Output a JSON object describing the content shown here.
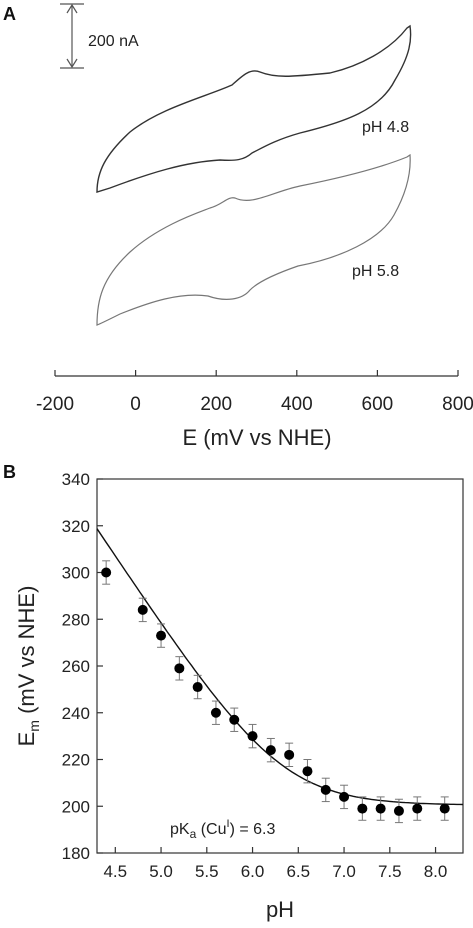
{
  "panels": {
    "a_label": "A",
    "b_label": "B"
  },
  "chart_data": [
    {
      "type": "line",
      "panel": "A",
      "xlabel": "E (mV vs NHE)",
      "ylabel": "",
      "xlim": [
        -200,
        800
      ],
      "xticks": [
        -200,
        0,
        200,
        400,
        600,
        800
      ],
      "scale_bar": {
        "label": "200 nA",
        "value_nA": 200
      },
      "series": [
        {
          "name": "pH 4.8",
          "E_range_mV": [
            -100,
            700
          ],
          "midpoint_mV": 250
        },
        {
          "name": "pH 5.8",
          "E_range_mV": [
            -100,
            690
          ],
          "midpoint_mV": 220
        }
      ]
    },
    {
      "type": "scatter",
      "panel": "B",
      "xlabel": "pH",
      "ylabel": "Em (mV vs NHE)",
      "ylabel_main": "E",
      "ylabel_sub": "m",
      "ylabel_rest": " (mV vs NHE)",
      "xlim": [
        4.3,
        8.3
      ],
      "ylim": [
        180,
        340
      ],
      "xticks": [
        "4.5",
        "5.0",
        "5.5",
        "6.0",
        "6.5",
        "7.0",
        "7.5",
        "8.0"
      ],
      "yticks": [
        "180",
        "200",
        "220",
        "240",
        "260",
        "280",
        "300",
        "320",
        "340"
      ],
      "annotation": {
        "prefix": "pK",
        "sub": "a",
        "mid": " (Cu",
        "sup": "I",
        "suffix": ") = 6.3"
      },
      "points": [
        {
          "x": 4.4,
          "y": 300,
          "err": 5
        },
        {
          "x": 4.8,
          "y": 284,
          "err": 5
        },
        {
          "x": 5.0,
          "y": 273,
          "err": 5
        },
        {
          "x": 5.2,
          "y": 259,
          "err": 5
        },
        {
          "x": 5.4,
          "y": 251,
          "err": 5
        },
        {
          "x": 5.6,
          "y": 240,
          "err": 5
        },
        {
          "x": 5.8,
          "y": 237,
          "err": 5
        },
        {
          "x": 6.0,
          "y": 230,
          "err": 5
        },
        {
          "x": 6.2,
          "y": 224,
          "err": 5
        },
        {
          "x": 6.4,
          "y": 222,
          "err": 5
        },
        {
          "x": 6.6,
          "y": 215,
          "err": 5
        },
        {
          "x": 6.8,
          "y": 207,
          "err": 5
        },
        {
          "x": 7.0,
          "y": 204,
          "err": 5
        },
        {
          "x": 7.2,
          "y": 199,
          "err": 5
        },
        {
          "x": 7.4,
          "y": 199,
          "err": 5
        },
        {
          "x": 7.6,
          "y": 198,
          "err": 5
        },
        {
          "x": 7.8,
          "y": 199,
          "err": 5
        },
        {
          "x": 8.1,
          "y": 199,
          "err": 5
        }
      ],
      "fit": {
        "pKa": 6.3,
        "baseline_mV": 200.5,
        "slope_mV_per_pH": 59
      }
    }
  ]
}
